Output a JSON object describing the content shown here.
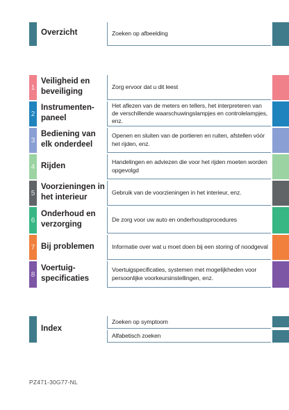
{
  "colors": {
    "overview": "#3f7b8b",
    "border": "#6a8fa8"
  },
  "overview": {
    "title": "Overzicht",
    "desc": "Zoeken op afbeelding"
  },
  "sections": [
    {
      "number": "1",
      "title": "Veiligheid en beveiliging",
      "desc": "Zorg ervoor dat u dit leest",
      "color": "#f0818b"
    },
    {
      "number": "2",
      "title": "Instrumenten-paneel",
      "desc": "Het aflezen van de meters en tellers, het interpreteren van de verschillende waarschuwingslampjes en controlelampjes, enz.",
      "color": "#1f83bd"
    },
    {
      "number": "3",
      "title": "Bediening van elk onderdeel",
      "desc": "Openen en sluiten van de portieren en ruiten, afstellen vóór het rijden, enz.",
      "color": "#8a9fd3"
    },
    {
      "number": "4",
      "title": "Rijden",
      "desc": "Handelingen en adviezen die voor het rijden moeten worden opgevolgd",
      "color": "#9bd3a3"
    },
    {
      "number": "5",
      "title": "Voorzieningen in het interieur",
      "desc": "Gebruik van de voorzieningen in het interieur, enz.",
      "color": "#606467"
    },
    {
      "number": "6",
      "title": "Onderhoud en verzorging",
      "desc": "De zorg voor uw auto en onderhoudsprocedures",
      "color": "#38b683"
    },
    {
      "number": "7",
      "title": "Bij problemen",
      "desc": "Informatie over wat u moet doen bij een storing of noodgeval",
      "color": "#f0803c"
    },
    {
      "number": "8",
      "title": "Voertuig-specificaties",
      "desc": "Voertuigspecificaties, systemen met mogelijkheden voor persoonlijke voorkeursinstellingen, enz.",
      "color": "#7d56a6"
    }
  ],
  "index": {
    "title": "Index",
    "desc1": "Zoeken op symptoom",
    "desc2": "Alfabetisch zoeken"
  },
  "footer_code": "PZ471-30G77-NL"
}
